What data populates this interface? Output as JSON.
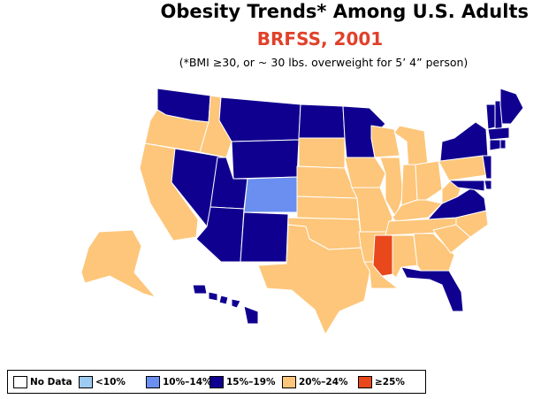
{
  "title": "Obesity Trends*  Among U.S. Adults",
  "subtitle": "BRFSS, 2001",
  "footnote": "(*BMI ≥30, or ~ 30 lbs. overweight for 5’ 4” person)",
  "colors": {
    "no_data": "#ffffff",
    "lt10": "#9ecbf2",
    "c10_14": "#6a8ff0",
    "c15_19": "#10008f",
    "c20_24": "#fdc67a",
    "ge25": "#e8481c"
  },
  "legend": [
    {
      "label": "No Data",
      "category": "no_data"
    },
    {
      "label": "<10%",
      "category": "lt10"
    },
    {
      "label": "10%–14%",
      "category": "c10_14"
    },
    {
      "label": "15%–19%",
      "category": "c15_19"
    },
    {
      "label": "20%–24%",
      "category": "c20_24"
    },
    {
      "label": "≥25%",
      "category": "ge25"
    }
  ],
  "states": {
    "WA": "c15_19",
    "OR": "c20_24",
    "CA": "c20_24",
    "ID": "c20_24",
    "NV": "c15_19",
    "MT": "c15_19",
    "WY": "c15_19",
    "UT": "c15_19",
    "AZ": "c15_19",
    "CO": "c10_14",
    "NM": "c15_19",
    "ND": "c15_19",
    "SD": "c20_24",
    "NE": "c20_24",
    "KS": "c20_24",
    "OK": "c20_24",
    "TX": "c20_24",
    "MN": "c15_19",
    "IA": "c20_24",
    "MO": "c20_24",
    "AR": "c20_24",
    "LA": "c20_24",
    "WI": "c20_24",
    "IL": "c20_24",
    "MI": "c20_24",
    "IN": "c20_24",
    "OH": "c20_24",
    "KY": "c20_24",
    "TN": "c20_24",
    "MS": "ge25",
    "AL": "c20_24",
    "GA": "c20_24",
    "FL": "c15_19",
    "SC": "c20_24",
    "NC": "c20_24",
    "VA": "c15_19",
    "WV": "c20_24",
    "PA": "c20_24",
    "NY": "c15_19",
    "VT": "c15_19",
    "NH": "c15_19",
    "ME": "c15_19",
    "MA": "c15_19",
    "CT": "c15_19",
    "RI": "c15_19",
    "NJ": "c15_19",
    "DE": "c15_19",
    "MD": "c15_19",
    "AK": "c20_24",
    "HI": "c15_19"
  }
}
